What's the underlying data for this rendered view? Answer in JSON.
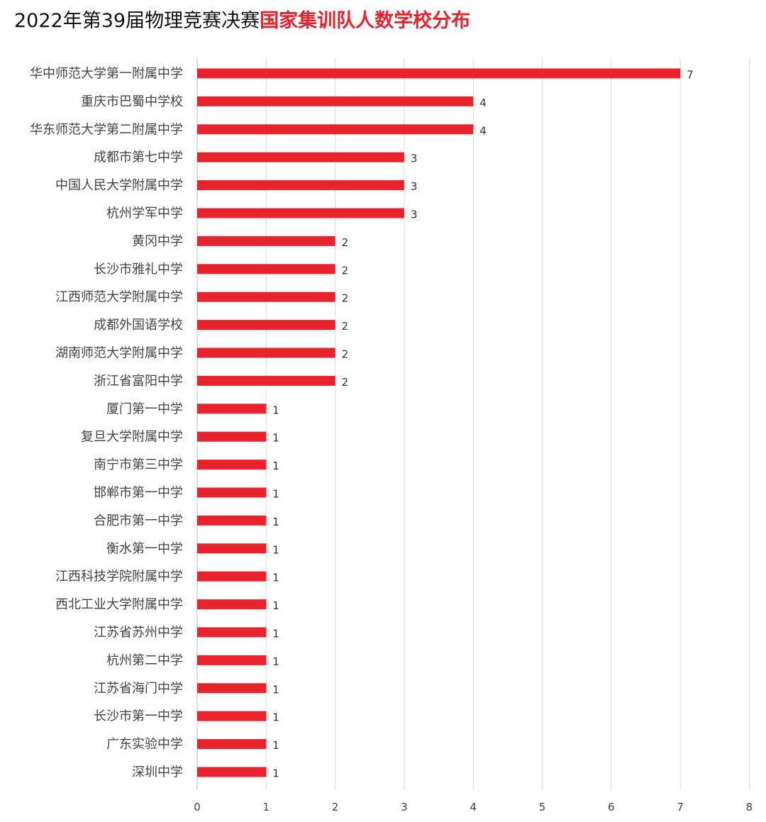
{
  "chart_data": {
    "type": "bar",
    "orientation": "horizontal",
    "title_part1": "2022年第39届物理竞赛决赛",
    "title_part2": "国家集训队人数学校分布",
    "categories": [
      "华中师范大学第一附属中学",
      "重庆市巴蜀中学校",
      "华东师范大学第二附属中学",
      "成都市第七中学",
      "中国人民大学附属中学",
      "杭州学军中学",
      "黄冈中学",
      "长沙市雅礼中学",
      "江西师范大学附属中学",
      "成都外国语学校",
      "湖南师范大学附属中学",
      "浙江省富阳中学",
      "厦门第一中学",
      "复旦大学附属中学",
      "南宁市第三中学",
      "邯郸市第一中学",
      "合肥市第一中学",
      "衡水第一中学",
      "江西科技学院附属中学",
      "西北工业大学附属中学",
      "江苏省苏州中学",
      "杭州第二中学",
      "江苏省海门中学",
      "长沙市第一中学",
      "广东实验中学",
      "深圳中学"
    ],
    "values": [
      7,
      4,
      4,
      3,
      3,
      3,
      2,
      2,
      2,
      2,
      2,
      2,
      1,
      1,
      1,
      1,
      1,
      1,
      1,
      1,
      1,
      1,
      1,
      1,
      1,
      1
    ],
    "xlim": [
      0,
      8
    ],
    "xticks": [
      0,
      1,
      2,
      3,
      4,
      5,
      6,
      7,
      8
    ],
    "grid": true,
    "bar_color": "#e8232c",
    "title_highlight_color": "#e8232c"
  }
}
